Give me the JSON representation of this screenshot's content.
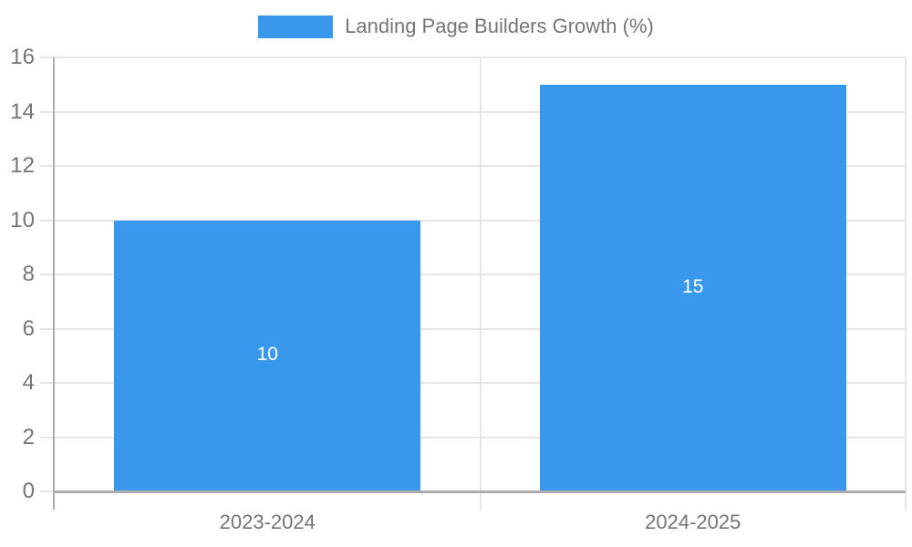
{
  "chart_data": {
    "type": "bar",
    "title": "Landing Page Builders Growth (%)",
    "categories": [
      "2023-2024",
      "2024-2025"
    ],
    "values": [
      10,
      15
    ],
    "data_labels": [
      "10",
      "15"
    ],
    "xlabel": "",
    "ylabel": "",
    "ylim": [
      0,
      16
    ],
    "yticks": [
      0,
      2,
      4,
      6,
      8,
      10,
      12,
      14,
      16
    ],
    "grid": true,
    "legend_position": "top",
    "colors": {
      "bar": "#3a98ec",
      "grid": "#e5e5e5",
      "axis": "#adadad",
      "tick_text": "#757575",
      "data_label": "#ffffff"
    }
  }
}
